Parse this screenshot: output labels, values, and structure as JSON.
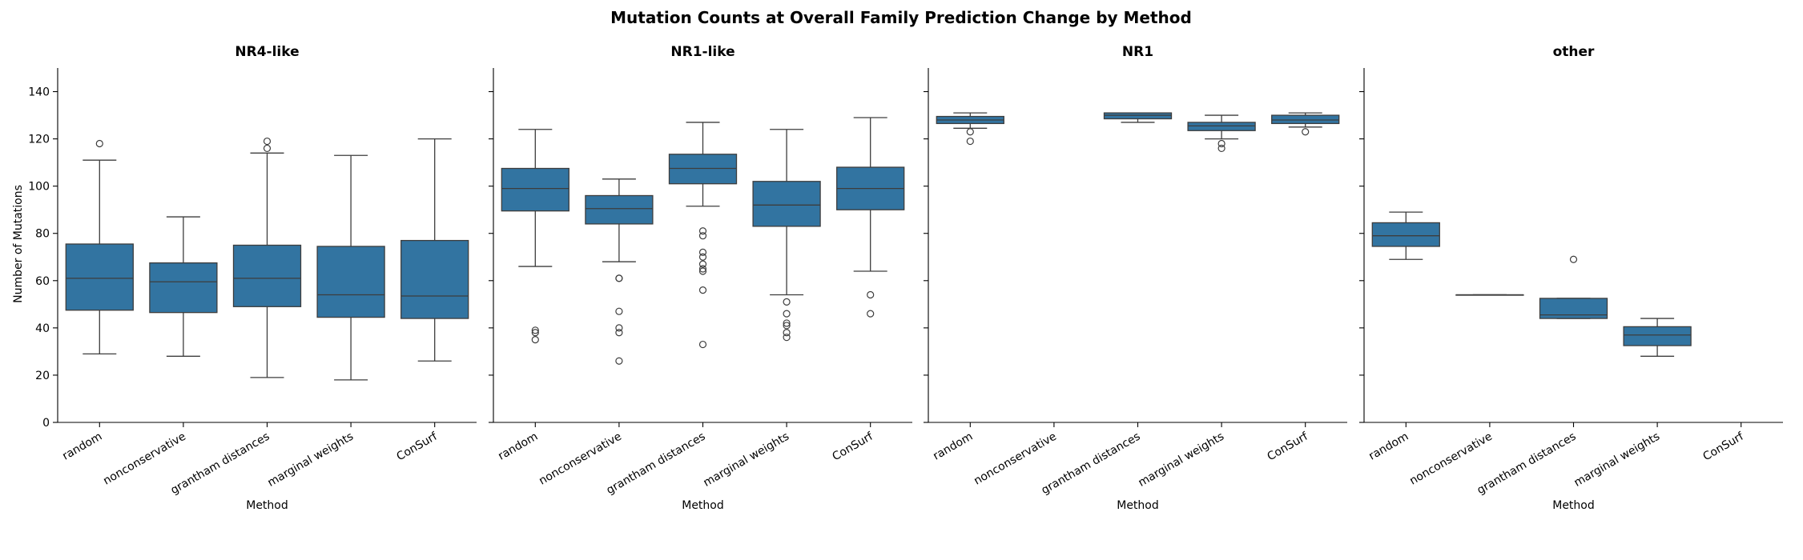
{
  "chart_data": {
    "type": "box",
    "title": "Mutation Counts at Overall Family Prediction Change by Method",
    "ylabel": "Number of Mutations",
    "xlabel": "Method",
    "ylim": [
      0,
      150
    ],
    "yticks": [
      0,
      20,
      40,
      60,
      80,
      100,
      120,
      140
    ],
    "categories": [
      "random",
      "nonconservative",
      "grantham distances",
      "marginal weights",
      "ConSurf"
    ],
    "shared_y": true,
    "colors": {
      "box": "#3274a1",
      "line": "#3d3d3d"
    },
    "panels": [
      {
        "title": "NR4-like",
        "boxes": [
          {
            "category": "random",
            "q1": 47.5,
            "median": 61,
            "q3": 75.5,
            "whislo": 29,
            "whishi": 111,
            "fliers": [
              118
            ]
          },
          {
            "category": "nonconservative",
            "q1": 46.5,
            "median": 59.5,
            "q3": 67.5,
            "whislo": 28,
            "whishi": 87,
            "fliers": []
          },
          {
            "category": "grantham distances",
            "q1": 49,
            "median": 61,
            "q3": 75,
            "whislo": 19,
            "whishi": 114,
            "fliers": [
              116,
              119
            ]
          },
          {
            "category": "marginal weights",
            "q1": 44.5,
            "median": 54,
            "q3": 74.5,
            "whislo": 18,
            "whishi": 113,
            "fliers": []
          },
          {
            "category": "ConSurf",
            "q1": 44,
            "median": 53.5,
            "q3": 77,
            "whislo": 26,
            "whishi": 120,
            "fliers": []
          }
        ]
      },
      {
        "title": "NR1-like",
        "boxes": [
          {
            "category": "random",
            "q1": 89.5,
            "median": 99,
            "q3": 107.5,
            "whislo": 66,
            "whishi": 124,
            "fliers": [
              35,
              38,
              39
            ]
          },
          {
            "category": "nonconservative",
            "q1": 84,
            "median": 90.5,
            "q3": 96,
            "whislo": 68,
            "whishi": 103,
            "fliers": [
              26,
              38,
              40,
              47,
              61,
              61
            ]
          },
          {
            "category": "grantham distances",
            "q1": 101,
            "median": 107.5,
            "q3": 113.5,
            "whislo": 91.5,
            "whishi": 127,
            "fliers": [
              33,
              56,
              64,
              65,
              67,
              70,
              72,
              79,
              81
            ]
          },
          {
            "category": "marginal weights",
            "q1": 83,
            "median": 92,
            "q3": 102,
            "whislo": 54,
            "whishi": 124,
            "fliers": [
              36,
              38,
              41,
              42,
              46,
              51
            ]
          },
          {
            "category": "ConSurf",
            "q1": 90,
            "median": 99,
            "q3": 108,
            "whislo": 64,
            "whishi": 129,
            "fliers": [
              46,
              54
            ]
          }
        ]
      },
      {
        "title": "NR1",
        "boxes": [
          {
            "category": "random",
            "q1": 126.5,
            "median": 128,
            "q3": 129.5,
            "whislo": 124.5,
            "whishi": 131,
            "fliers": [
              119,
              123
            ]
          },
          {
            "category": "nonconservative",
            "q1": null,
            "median": null,
            "q3": null,
            "whislo": null,
            "whishi": null,
            "fliers": []
          },
          {
            "category": "grantham distances",
            "q1": 128.5,
            "median": 130,
            "q3": 131,
            "whislo": 127,
            "whishi": 131,
            "fliers": []
          },
          {
            "category": "marginal weights",
            "q1": 123.5,
            "median": 125.5,
            "q3": 127,
            "whislo": 120,
            "whishi": 130,
            "fliers": [
              116,
              118
            ]
          },
          {
            "category": "ConSurf",
            "q1": 126.5,
            "median": 128,
            "q3": 130,
            "whislo": 125,
            "whishi": 131,
            "fliers": [
              123
            ]
          }
        ]
      },
      {
        "title": "other",
        "boxes": [
          {
            "category": "random",
            "q1": 74.5,
            "median": 79,
            "q3": 84.5,
            "whislo": 69,
            "whishi": 89,
            "fliers": []
          },
          {
            "category": "nonconservative",
            "q1": 54,
            "median": 54,
            "q3": 54,
            "whislo": 54,
            "whishi": 54,
            "fliers": []
          },
          {
            "category": "grantham distances",
            "q1": 44,
            "median": 45.5,
            "q3": 52.5,
            "whislo": 44,
            "whishi": 52.5,
            "fliers": [
              69
            ]
          },
          {
            "category": "marginal weights",
            "q1": 32.5,
            "median": 37,
            "q3": 40.5,
            "whislo": 28,
            "whishi": 44,
            "fliers": []
          },
          {
            "category": "ConSurf",
            "q1": null,
            "median": null,
            "q3": null,
            "whislo": null,
            "whishi": null,
            "fliers": []
          }
        ]
      }
    ]
  }
}
